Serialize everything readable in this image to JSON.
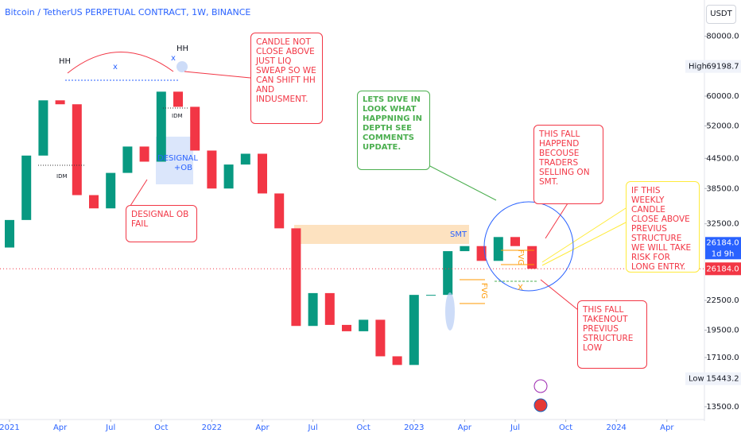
{
  "chart_data": {
    "type": "candlestick",
    "title": "Bitcoin / TetherUS PERPETUAL CONTRACT, 1W, BINANCE",
    "currency": "USDT",
    "x": [
      "2021-01",
      "2021-02",
      "2021-03",
      "2021-04",
      "2021-05",
      "2021-06",
      "2021-07",
      "2021-08",
      "2021-09",
      "2021-10",
      "2021-11",
      "2021-12",
      "2022-01",
      "2022-02",
      "2022-03",
      "2022-04",
      "2022-05",
      "2022-06",
      "2022-07",
      "2022-08",
      "2022-09",
      "2022-10",
      "2022-11",
      "2022-12",
      "2023-01",
      "2023-02",
      "2023-03",
      "2023-04",
      "2023-05",
      "2023-06",
      "2023-07",
      "2023-08"
    ],
    "open": [
      29000,
      33100,
      45100,
      58800,
      57700,
      37300,
      35000,
      41500,
      47100,
      43800,
      61300,
      57000,
      46200,
      38500,
      43200,
      45500,
      37600,
      31800,
      19900,
      23300,
      20000,
      19400,
      20500,
      17200,
      16500,
      23100,
      23100,
      28500,
      29200,
      27200,
      30500,
      29200
    ],
    "high": {
      "label": "High",
      "value": 69198.7
    },
    "low": {
      "label": "Low",
      "value": 15443.2
    },
    "close": [
      33100,
      45100,
      58800,
      57700,
      37300,
      35000,
      41500,
      47100,
      43800,
      61300,
      57000,
      46200,
      38500,
      43200,
      45500,
      37600,
      31800,
      19900,
      23300,
      20000,
      19400,
      20500,
      17200,
      16500,
      23100,
      23100,
      28500,
      29200,
      27200,
      30500,
      29200,
      26184
    ],
    "up_color": "#089981",
    "down_color": "#f23645",
    "xlim": [
      "2020-12",
      "2024-06"
    ],
    "xticks": [
      {
        "value": "2021-01",
        "label": "2021"
      },
      {
        "value": "2021-04",
        "label": "Apr"
      },
      {
        "value": "2021-07",
        "label": "Jul"
      },
      {
        "value": "2021-10",
        "label": "Oct"
      },
      {
        "value": "2022-01",
        "label": "2022"
      },
      {
        "value": "2022-04",
        "label": "Apr"
      },
      {
        "value": "2022-07",
        "label": "Jul"
      },
      {
        "value": "2022-10",
        "label": "Oct"
      },
      {
        "value": "2023-01",
        "label": "2023"
      },
      {
        "value": "2023-04",
        "label": "Apr"
      },
      {
        "value": "2023-07",
        "label": "Jul"
      },
      {
        "value": "2023-10",
        "label": "Oct"
      },
      {
        "value": "2024-01",
        "label": "2024"
      },
      {
        "value": "2024-04",
        "label": "Apr"
      }
    ],
    "ylim": [
      12600,
      95200
    ],
    "log_scale": true,
    "grid": false,
    "yticks": [
      {
        "value": 80000,
        "label": "80000.0"
      },
      {
        "value": 60000,
        "label": "60000.0"
      },
      {
        "value": 52000,
        "label": "52000.0"
      },
      {
        "value": 44500,
        "label": "44500.0"
      },
      {
        "value": 38500,
        "label": "38500.0"
      },
      {
        "value": 32500,
        "label": "32500.0"
      },
      {
        "value": 22500,
        "label": "22500.0"
      },
      {
        "value": 19500,
        "label": "19500.0"
      },
      {
        "value": 17100,
        "label": "17100.0"
      },
      {
        "value": 13500,
        "label": "13500.0"
      }
    ],
    "last": {
      "value": 26184,
      "label": "26184.0",
      "countdown": "1d 9h"
    }
  },
  "annotations": [
    "HH",
    "HH",
    "x",
    "x",
    "IDM",
    "IDM",
    "DESIGNAL +OB",
    "DESIGNAL OB FAIL",
    "CANDLE NOT CLOSE ABOVE JUST LIQ SWEAP SO WE CAN SHIFT HH AND INDUSMENT.",
    "LETS DIVE IN LOOK WHAT HAPPNING IN DEPTH SEE COMMENTS UPDATE.",
    "THIS FALL HAPPEND BECOUSE TRADERS SELLING ON SMT.",
    "IF THIS WEEKLY CANDLE CLOSE ABOVE PREVIUS STRUCTURE WE WILL TAKE RISK FOR LONG ENTRY.",
    "THIS FALL TAKENOUT PREVIUS STRUCTURE LOW",
    "SMT",
    "FVG",
    "FVG",
    "X"
  ]
}
